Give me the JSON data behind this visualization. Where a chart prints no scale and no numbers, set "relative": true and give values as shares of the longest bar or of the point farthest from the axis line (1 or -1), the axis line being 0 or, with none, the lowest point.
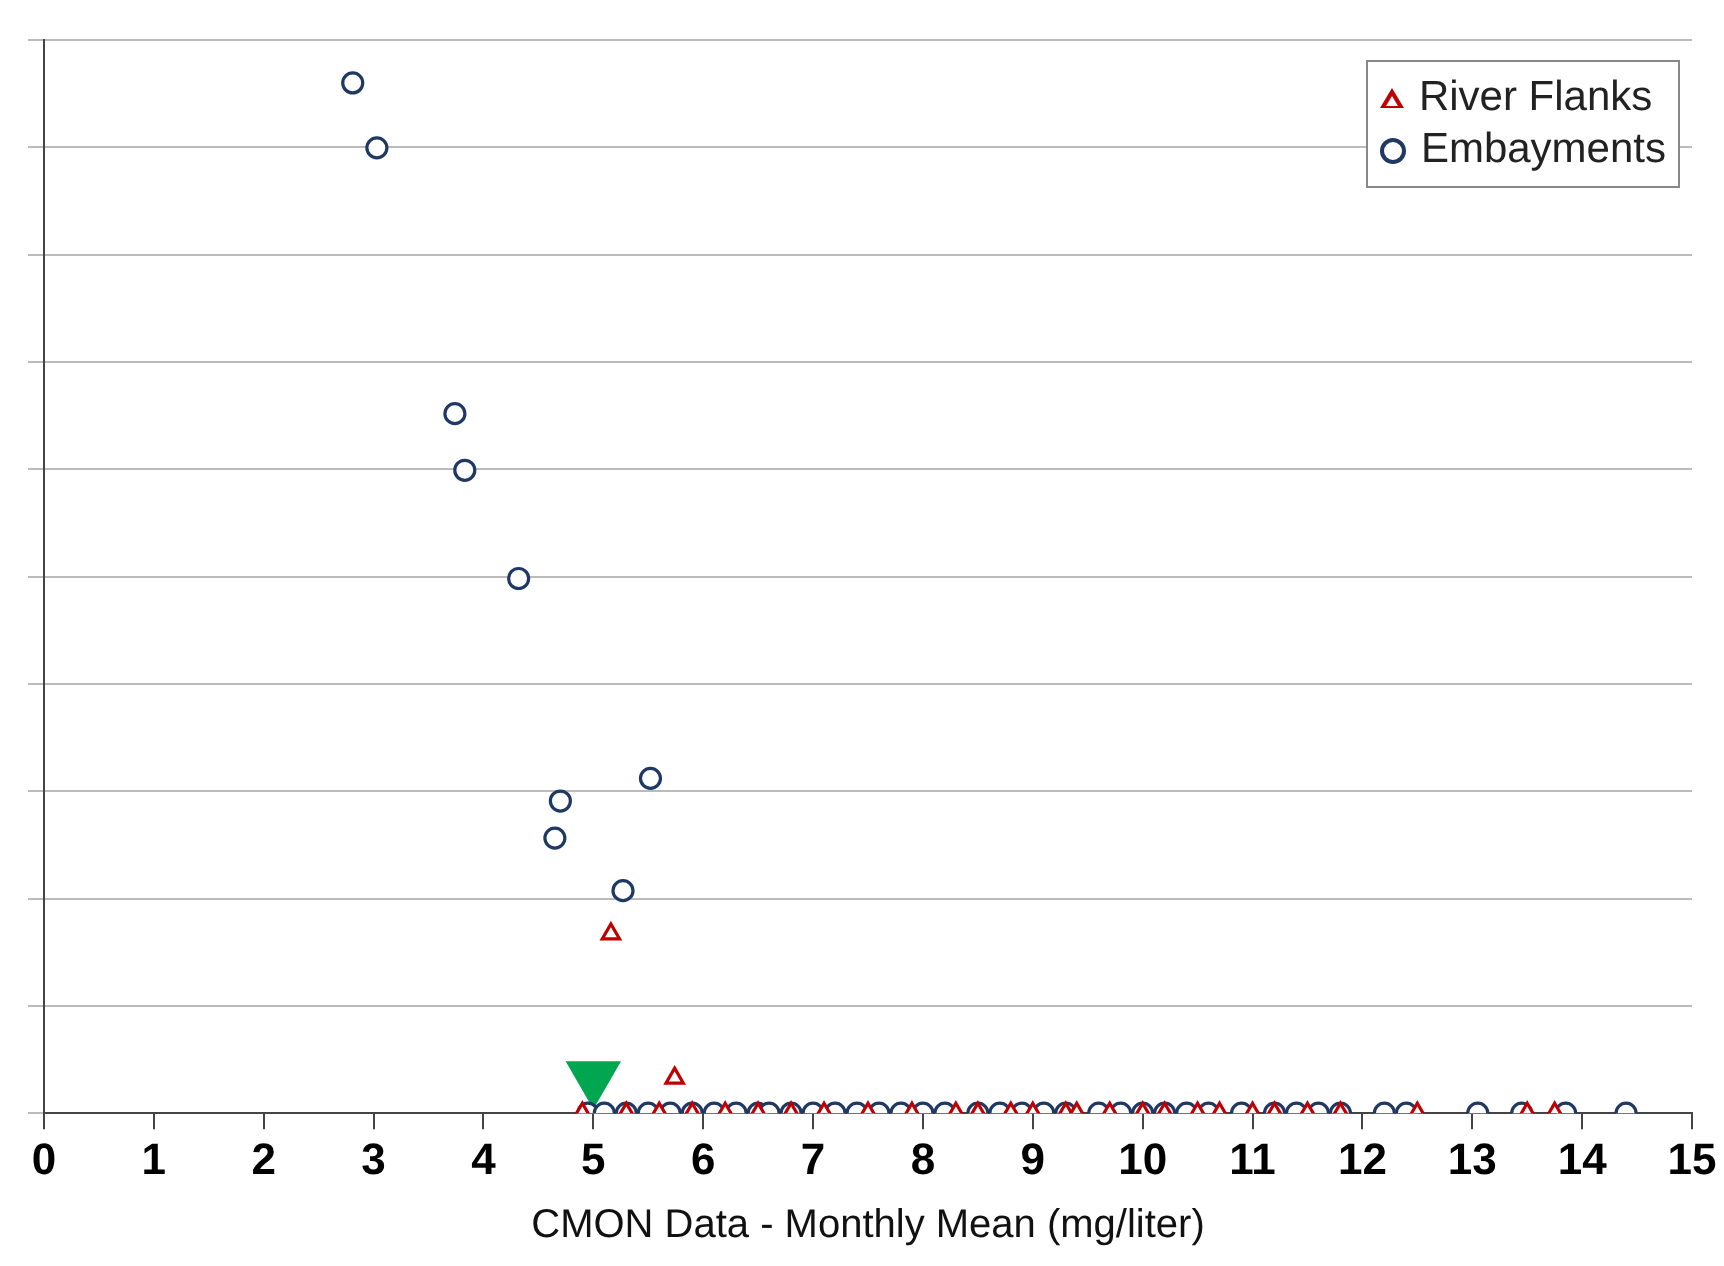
{
  "chart_data": {
    "type": "scatter",
    "xlabel": "CMON Data - Monthly Mean (mg/liter)",
    "relative": true,
    "xlim": [
      0,
      15
    ],
    "xticks": [
      0,
      1,
      2,
      3,
      4,
      5,
      6,
      7,
      8,
      9,
      10,
      11,
      12,
      13,
      14,
      15
    ],
    "grid": "y",
    "legend": "top right",
    "tick_labels": "x",
    "series": [
      {
        "name": "River Flanks",
        "color": "#c00000",
        "marker": "triangle",
        "x": [
          5.16,
          5.74,
          4.9,
          5.3,
          5.6,
          5.9,
          6.2,
          6.5,
          6.8,
          7.1,
          7.5,
          7.9,
          8.3,
          8.5,
          8.8,
          9.0,
          9.3,
          9.4,
          9.7,
          10.0,
          10.2,
          10.5,
          10.7,
          11.0,
          11.2,
          11.5,
          11.8,
          12.5,
          13.5,
          13.75
        ],
        "values": [
          0.174,
          0.034,
          0,
          0,
          0,
          0,
          0,
          0,
          0,
          0,
          0,
          0,
          0,
          0,
          0,
          0,
          0,
          0,
          0,
          0,
          0,
          0,
          0,
          0,
          0,
          0,
          0,
          0,
          0,
          0
        ]
      },
      {
        "name": "Embayments",
        "color": "#1f3864",
        "marker": "circle",
        "x": [
          2.81,
          3.03,
          3.74,
          3.83,
          4.32,
          4.7,
          4.65,
          5.52,
          5.27,
          4.95,
          5.1,
          5.3,
          5.5,
          5.7,
          5.9,
          6.1,
          6.3,
          6.5,
          6.6,
          6.8,
          7.0,
          7.2,
          7.4,
          7.6,
          7.8,
          8.0,
          8.2,
          8.5,
          8.7,
          8.9,
          9.1,
          9.3,
          9.6,
          9.8,
          10.0,
          10.2,
          10.4,
          10.6,
          10.9,
          11.2,
          11.4,
          11.6,
          11.8,
          12.2,
          12.4,
          13.05,
          13.45,
          13.85,
          14.4
        ],
        "values": [
          1,
          0.937,
          0.679,
          0.624,
          0.519,
          0.303,
          0.267,
          0.325,
          0.216,
          0,
          0,
          0,
          0,
          0,
          0,
          0,
          0,
          0,
          0,
          0,
          0,
          0,
          0,
          0,
          0,
          0,
          0,
          0,
          0,
          0,
          0,
          0,
          0,
          0,
          0,
          0,
          0,
          0,
          0,
          0,
          0,
          0,
          0,
          0,
          0,
          0,
          0,
          0,
          0
        ]
      },
      {
        "color": "#00a650",
        "marker": "triangle",
        "x": [
          5.0
        ],
        "values": [
          0.035
        ]
      }
    ]
  }
}
